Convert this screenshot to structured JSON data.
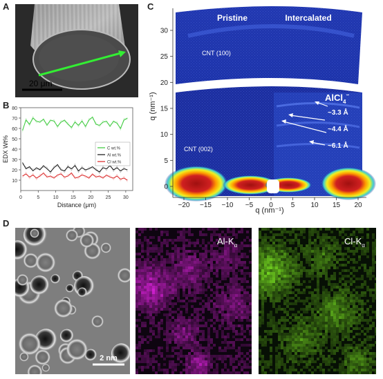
{
  "panels": {
    "A": {
      "label": "A",
      "scalebar": "20 μm"
    },
    "B": {
      "label": "B",
      "chart_data": {
        "type": "line",
        "xlabel": "Distance (μm)",
        "ylabel": "EDX Wt%",
        "xlim": [
          0,
          32
        ],
        "ylim": [
          0,
          80
        ],
        "xticks": [
          0,
          5,
          10,
          15,
          20,
          25,
          30
        ],
        "yticks": [
          10,
          20,
          30,
          40,
          50,
          60,
          70,
          80
        ],
        "legend": [
          "C wt.%",
          "Al wt.%",
          "Cl wt.%"
        ],
        "legend_position": "center-right",
        "x": [
          0.5,
          1.5,
          2.5,
          3.5,
          4.5,
          5.5,
          6.5,
          7.5,
          8.5,
          9.5,
          10.5,
          11.5,
          12.5,
          13.5,
          14.5,
          15.5,
          16.5,
          17.5,
          18.5,
          19.5,
          20.5,
          21.5,
          22.5,
          23.5,
          24.5,
          25.5,
          26.5,
          27.5,
          28.5,
          29.5,
          30.5
        ],
        "series": [
          {
            "name": "C wt.%",
            "color": "#44cc44",
            "values": [
              58,
              68,
              64,
              70,
              67,
              66,
              69,
              63,
              68,
              67,
              62,
              66,
              68,
              64,
              61,
              66,
              63,
              67,
              62,
              68,
              71,
              64,
              63,
              66,
              67,
              62,
              67,
              65,
              60,
              68,
              70
            ]
          },
          {
            "name": "Al wt.%",
            "color": "#222222",
            "values": [
              27,
              21,
              23,
              19,
              22,
              20,
              24,
              21,
              18,
              22,
              25,
              20,
              19,
              23,
              21,
              24,
              19,
              22,
              20,
              21,
              23,
              20,
              18,
              22,
              21,
              24,
              20,
              22,
              19,
              21,
              20
            ]
          },
          {
            "name": "Cl wt.%",
            "color": "#dd3333",
            "values": [
              14,
              16,
              13,
              15,
              12,
              14,
              17,
              13,
              14,
              12,
              15,
              16,
              13,
              14,
              17,
              12,
              13,
              15,
              14,
              12,
              16,
              13,
              14,
              12,
              15,
              13,
              12,
              14,
              11,
              12,
              10
            ]
          }
        ]
      }
    },
    "C": {
      "label": "C",
      "header_left": "Pristine",
      "header_right": "Intercalated",
      "cnt100": "CNT (100)",
      "cnt002": "CNT (002)",
      "ion": "AlCl",
      "ion_sub": "4",
      "ion_sup": "−",
      "spacings": [
        "~3.3 Å",
        "~4.4 Å",
        "~6.1 Å"
      ],
      "xlabel": "q (nm⁻¹)",
      "ylabel": "q (nm⁻¹)",
      "xticks": [
        "−20",
        "−15",
        "−10",
        "−5",
        "0",
        "5",
        "10",
        "15",
        "20"
      ],
      "yticks": [
        "0",
        "5",
        "10",
        "15",
        "20",
        "25",
        "30"
      ],
      "colors": {
        "background": "#1b2b9a",
        "hot": "#a01010"
      }
    },
    "D": {
      "label": "D",
      "scalebar": "2 nm",
      "map_al_main": "Al-K",
      "map_al_sub": "α",
      "map_cl_main": "Cl-K",
      "map_cl_sub": "α",
      "colors": {
        "al": "#d020d0",
        "cl": "#70d020"
      }
    }
  }
}
